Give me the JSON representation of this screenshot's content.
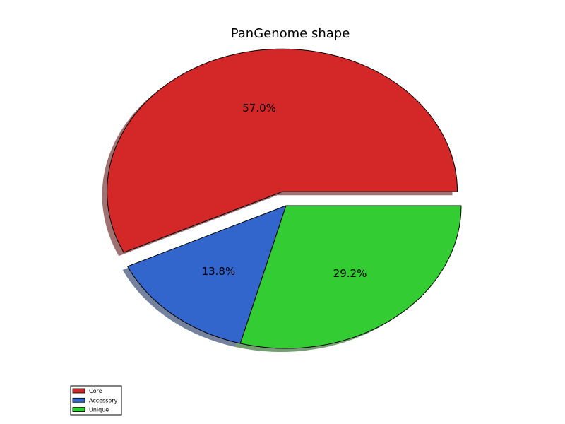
{
  "chart_data": {
    "type": "pie",
    "title": "PanGenome shape",
    "labels": [
      "Core",
      "Accessory",
      "Unique"
    ],
    "values": [
      57.0,
      13.8,
      29.2
    ],
    "value_labels": [
      "57.0%",
      "13.8%",
      "29.2%"
    ],
    "colors": [
      "#d32728",
      "#3366cc",
      "#33cc33"
    ],
    "exploded": [
      "Core"
    ],
    "shadow": true,
    "legend_placement": "lower-left"
  }
}
